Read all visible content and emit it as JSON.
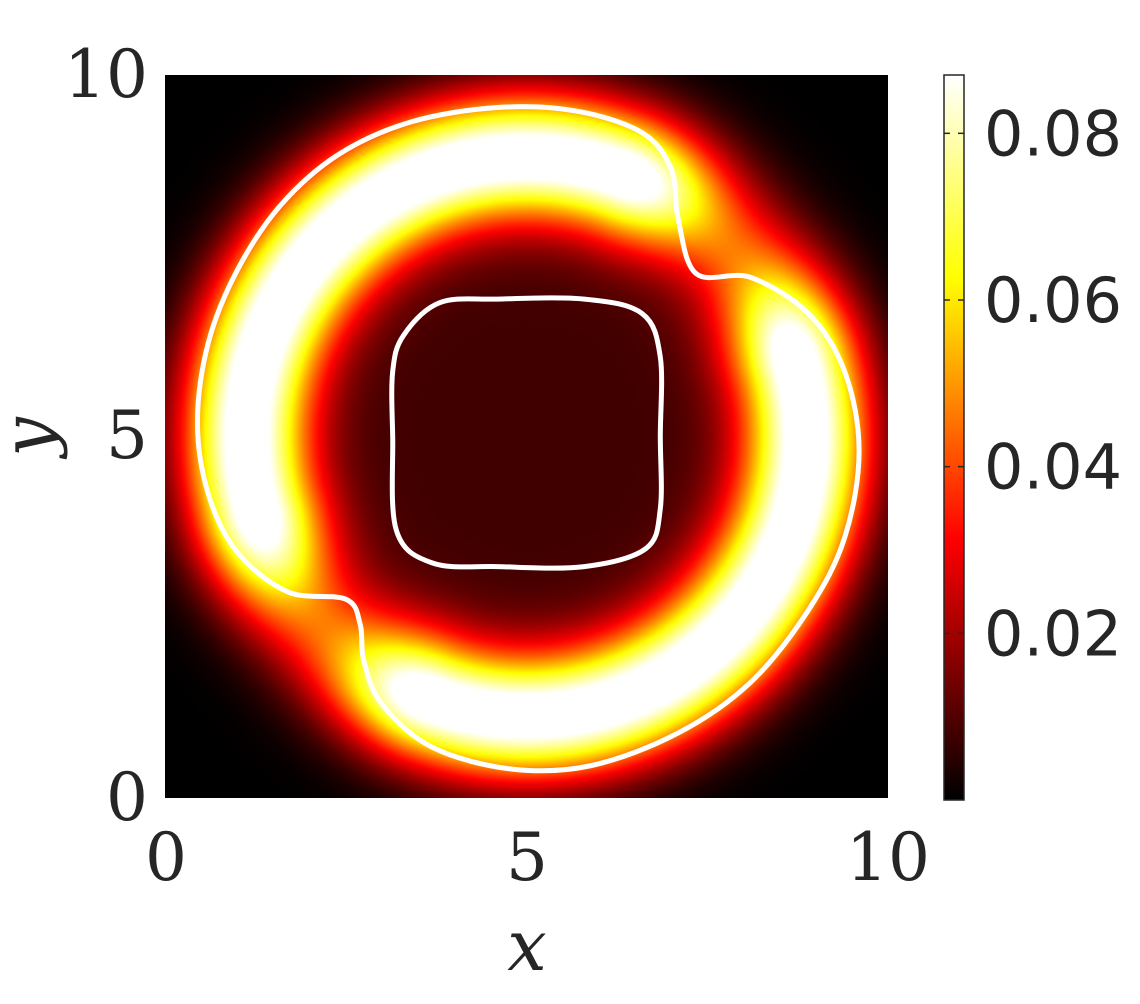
{
  "chart_data": {
    "type": "heatmap",
    "title": "",
    "xlabel": "x",
    "ylabel": "y",
    "xlim": [
      0,
      10
    ],
    "ylim": [
      0,
      10
    ],
    "x_ticks": [
      "0",
      "5",
      "10"
    ],
    "y_ticks": [
      "0",
      "5",
      "10"
    ],
    "colormap": "hot",
    "colorbar": {
      "range": [
        0,
        0.087
      ],
      "ticks": [
        "0.02",
        "0.04",
        "0.06",
        "0.08"
      ],
      "tick_values": [
        0.02,
        0.04,
        0.06,
        0.08
      ]
    },
    "field": {
      "description_values": "two crescent-shaped lobes (upper-left and lower-right) peaking near 0.085, low plateau in the center near 0.01",
      "lobes": [
        {
          "center": [
            5.0,
            5.0
          ],
          "radius": 3.9,
          "arc_from_deg": 70,
          "arc_to_deg": 195,
          "peak": 0.086
        },
        {
          "center": [
            5.0,
            5.0
          ],
          "radius": 3.9,
          "arc_from_deg": 250,
          "arc_to_deg": 375,
          "peak": 0.086
        }
      ],
      "background": 0.0,
      "center_plateau": 0.008
    },
    "contours": [
      {
        "name": "outer",
        "color": "#ffffff",
        "points": [
          [
            0.45,
            5.2
          ],
          [
            0.6,
            6.3
          ],
          [
            1.0,
            7.3
          ],
          [
            1.6,
            8.2
          ],
          [
            2.4,
            8.9
          ],
          [
            3.4,
            9.35
          ],
          [
            4.6,
            9.55
          ],
          [
            5.7,
            9.5
          ],
          [
            6.6,
            9.2
          ],
          [
            7.0,
            8.7
          ],
          [
            7.1,
            8.0
          ],
          [
            7.35,
            7.25
          ],
          [
            8.1,
            7.2
          ],
          [
            8.9,
            6.7
          ],
          [
            9.4,
            5.9
          ],
          [
            9.6,
            4.8
          ],
          [
            9.4,
            3.6
          ],
          [
            8.9,
            2.6
          ],
          [
            8.1,
            1.6
          ],
          [
            7.1,
            0.9
          ],
          [
            5.9,
            0.45
          ],
          [
            4.8,
            0.4
          ],
          [
            3.7,
            0.7
          ],
          [
            3.0,
            1.3
          ],
          [
            2.75,
            1.9
          ],
          [
            2.7,
            2.4
          ],
          [
            2.5,
            2.75
          ],
          [
            1.7,
            2.85
          ],
          [
            1.0,
            3.4
          ],
          [
            0.6,
            4.2
          ]
        ]
      },
      {
        "name": "inner",
        "color": "#ffffff",
        "points": [
          [
            3.3,
            6.4
          ],
          [
            3.8,
            6.85
          ],
          [
            4.6,
            6.9
          ],
          [
            5.8,
            6.9
          ],
          [
            6.6,
            6.7
          ],
          [
            6.85,
            6.1
          ],
          [
            6.85,
            5.0
          ],
          [
            6.85,
            4.0
          ],
          [
            6.65,
            3.45
          ],
          [
            5.8,
            3.2
          ],
          [
            4.6,
            3.2
          ],
          [
            3.7,
            3.25
          ],
          [
            3.2,
            3.7
          ],
          [
            3.15,
            5.0
          ],
          [
            3.15,
            5.9
          ]
        ]
      }
    ]
  }
}
